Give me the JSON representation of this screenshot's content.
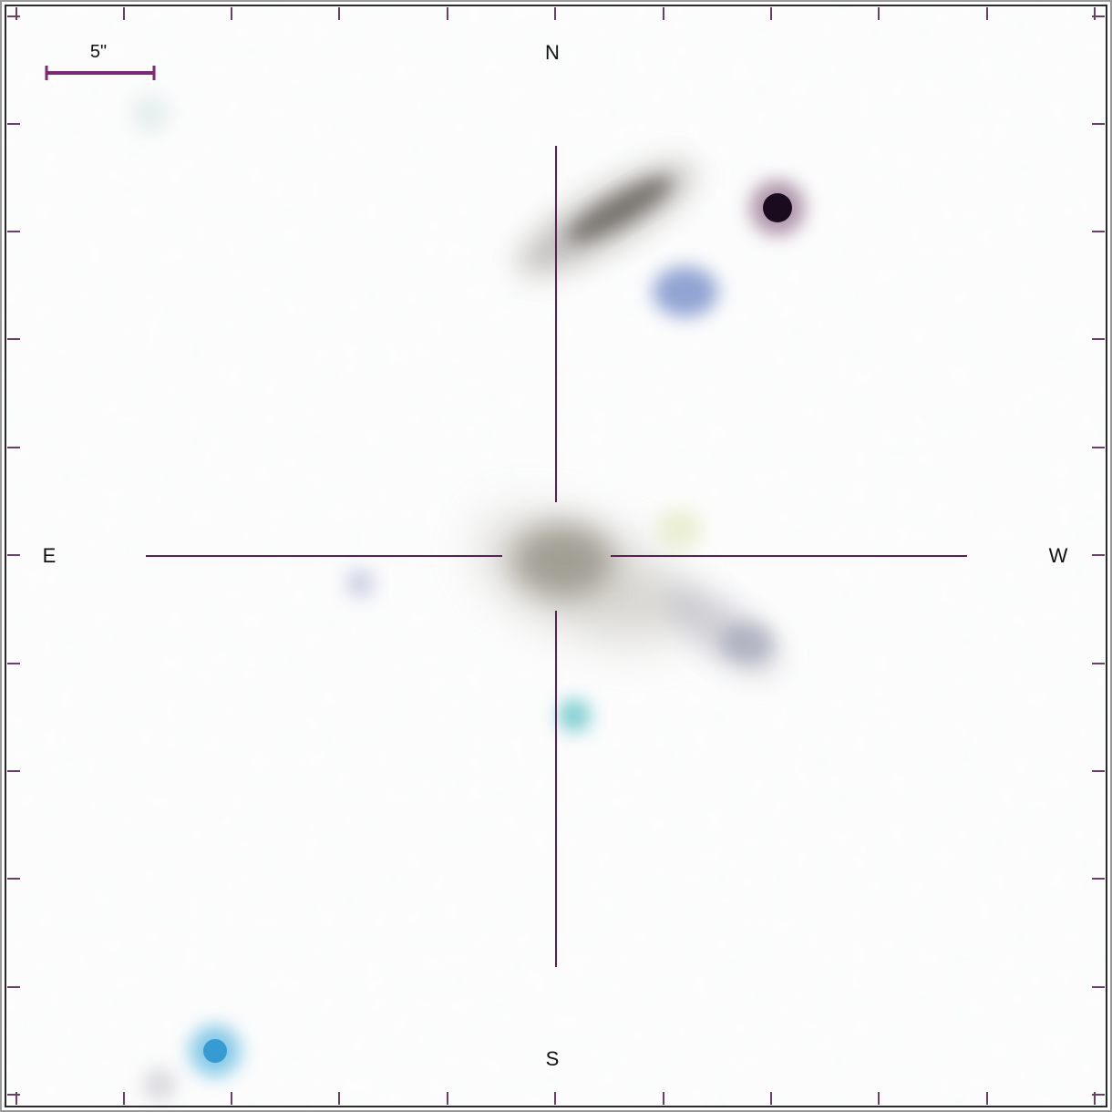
{
  "image": {
    "description_free": true
  },
  "scale_bar": {
    "label": "5\""
  },
  "compass": {
    "north": "N",
    "south": "S",
    "east": "E",
    "west": "W"
  },
  "colors": {
    "background": "#fdfdfd",
    "crosshair": "#5a1f55",
    "scale_bar": "#7a2a78",
    "ticks": "#6a3f66",
    "frame_outer": "#666666"
  }
}
